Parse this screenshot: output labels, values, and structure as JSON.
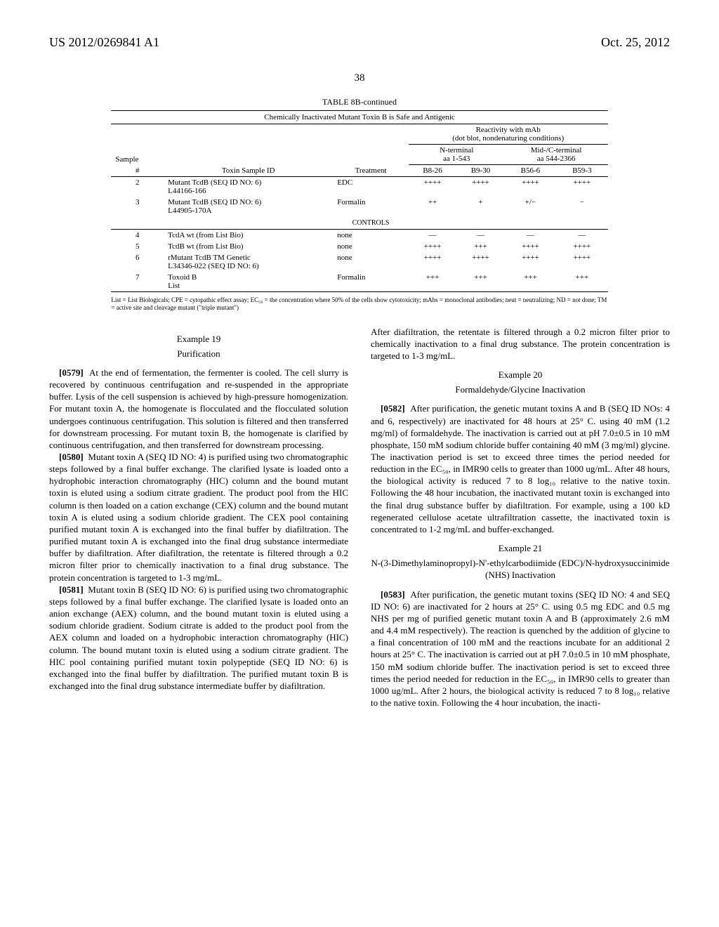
{
  "header": {
    "left": "US 2012/0269841 A1",
    "right": "Oct. 25, 2012"
  },
  "page_number": "38",
  "table": {
    "title": "TABLE 8B-continued",
    "subtitle": "Chemically Inactivated Mutant Toxin B is Safe and Antigenic",
    "group_header_main": "Reactivity with mAb\n(dot blot, nondenaturing conditions)",
    "group_sub_left": "N-terminal\naa 1-543",
    "group_sub_right": "Mid-/C-terminal\naa 544-2366",
    "col_sample": "Sample",
    "col_hash": "#",
    "col_toxin": "Toxin Sample ID",
    "col_treatment": "Treatment",
    "col_b826": "B8-26",
    "col_b930": "B9-30",
    "col_b566": "B56-6",
    "col_b593": "B59-3",
    "controls_label": "CONTROLS",
    "rows_top": [
      {
        "n": "2",
        "id": "Mutant TcdB (SEQ ID NO: 6)\nL44166-166",
        "tr": "EDC",
        "a": "++++",
        "b": "++++",
        "c": "++++",
        "d": "++++"
      },
      {
        "n": "3",
        "id": "Mutant TcdB (SEQ ID NO: 6)\nL44905-170A",
        "tr": "Formalin",
        "a": "++",
        "b": "+",
        "c": "+/−",
        "d": "−"
      }
    ],
    "rows_bottom": [
      {
        "n": "4",
        "id": "TcdA wt (from List Bio)",
        "tr": "none",
        "a": "—",
        "b": "—",
        "c": "—",
        "d": "—"
      },
      {
        "n": "5",
        "id": "TcdB wt (from List Bio)",
        "tr": "none",
        "a": "++++",
        "b": "+++",
        "c": "++++",
        "d": "++++"
      },
      {
        "n": "6",
        "id": "rMutant TcdB TM Genetic\nL34346-022 (SEQ ID NO: 6)",
        "tr": "none",
        "a": "++++",
        "b": "++++",
        "c": "++++",
        "d": "++++"
      },
      {
        "n": "7",
        "id": "Toxoid B\nList",
        "tr": "Formalin",
        "a": "+++",
        "b": "+++",
        "c": "+++",
        "d": "+++"
      }
    ]
  },
  "footnote": "List = List Biologicals; CPE = cytopathic effect assay; EC₅₀ = the concentration where 50% of the cells show cytotoxicity; mAbs = monoclonal antibodies; neut = neutralizing; ND = not done; TM = active site and cleavage mutant (\"triple mutant\")",
  "left_col": {
    "ex19_label": "Example 19",
    "ex19_title": "Purification",
    "p0579_num": "[0579]",
    "p0579": "At the end of fermentation, the fermenter is cooled. The cell slurry is recovered by continuous centrifugation and re-suspended in the appropriate buffer. Lysis of the cell suspension is achieved by high-pressure homogenization. For mutant toxin A, the homogenate is flocculated and the flocculated solution undergoes continuous centrifugation. This solution is filtered and then transferred for downstream processing. For mutant toxin B, the homogenate is clarified by continuous centrifugation, and then transferred for downstream processing.",
    "p0580_num": "[0580]",
    "p0580": "Mutant toxin A (SEQ ID NO: 4) is purified using two chromatographic steps followed by a final buffer exchange. The clarified lysate is loaded onto a hydrophobic interaction chromatography (HIC) column and the bound mutant toxin is eluted using a sodium citrate gradient. The product pool from the HIC column is then loaded on a cation exchange (CEX) column and the bound mutant toxin A is eluted using a sodium chloride gradient. The CEX pool containing purified mutant toxin A is exchanged into the final buffer by diafiltration. The purified mutant toxin A is exchanged into the final drug substance intermediate buffer by diafiltration. After diafiltration, the retentate is filtered through a 0.2 micron filter prior to chemically inactivation to a final drug substance. The protein concentration is targeted to 1-3 mg/mL.",
    "p0581_num": "[0581]",
    "p0581": "Mutant toxin B (SEQ ID NO: 6) is purified using two chromatographic steps followed by a final buffer exchange. The clarified lysate is loaded onto an anion exchange (AEX) column, and the bound mutant toxin is eluted using a sodium chloride gradient. Sodium citrate is added to the product pool from the AEX column and loaded on a hydrophobic interaction chromatography (HIC) column. The bound mutant toxin is eluted using a sodium citrate gradient. The HIC pool containing purified mutant toxin polypeptide (SEQ ID NO: 6) is exchanged into the final buffer by diafiltration. The purified mutant toxin B is exchanged into the final drug substance intermediate buffer by diafiltration."
  },
  "right_col": {
    "p_cont": "After diafiltration, the retentate is filtered through a 0.2 micron filter prior to chemically inactivation to a final drug substance. The protein concentration is targeted to 1-3 mg/mL.",
    "ex20_label": "Example 20",
    "ex20_title": "Formaldehyde/Glycine Inactivation",
    "p0582_num": "[0582]",
    "p0582": "After purification, the genetic mutant toxins A and B (SEQ ID NOs: 4 and 6, respectively) are inactivated for 48 hours at 25° C. using 40 mM (1.2 mg/ml) of formaldehyde. The inactivation is carried out at pH 7.0±0.5 in 10 mM phosphate, 150 mM sodium chloride buffer containing 40 mM (3 mg/ml) glycine. The inactivation period is set to exceed three times the period needed for reduction in the EC₅₀, in IMR90 cells to greater than 1000 ug/mL. After 48 hours, the biological activity is reduced 7 to 8 log₁₀ relative to the native toxin. Following the 48 hour incubation, the inactivated mutant toxin is exchanged into the final drug substance buffer by diafiltration. For example, using a 100 kD regenerated cellulose acetate ultrafiltration cassette, the inactivated toxin is concentrated to 1-2 mg/mL and buffer-exchanged.",
    "ex21_label": "Example 21",
    "ex21_title": "N-(3-Dimethylaminopropyl)-N'-ethylcarbodiimide (EDC)/N-hydroxysuccinimide (NHS) Inactivation",
    "p0583_num": "[0583]",
    "p0583": "After purification, the genetic mutant toxins (SEQ ID NO: 4 and SEQ ID NO: 6) are inactivated for 2 hours at 25° C. using 0.5 mg EDC and 0.5 mg NHS per mg of purified genetic mutant toxin A and B (approximately 2.6 mM and 4.4 mM respectively). The reaction is quenched by the addition of glycine to a final concentration of 100 mM and the reactions incubate for an additional 2 hours at 25° C. The inactivation is carried out at pH 7.0±0.5 in 10 mM phosphate, 150 mM sodium chloride buffer. The inactivation period is set to exceed three times the period needed for reduction in the EC₅₀, in IMR90 cells to greater than 1000 ug/mL. After 2 hours, the biological activity is reduced 7 to 8 log₁₀ relative to the native toxin. Following the 4 hour incubation, the inacti-"
  }
}
